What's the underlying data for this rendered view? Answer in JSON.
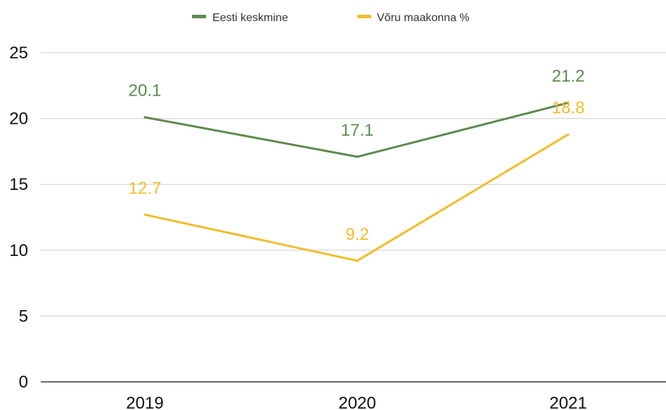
{
  "chart_data": {
    "type": "line",
    "title": "",
    "xlabel": "",
    "ylabel": "",
    "categories": [
      "2019",
      "2020",
      "2021"
    ],
    "ylim": [
      0,
      25
    ],
    "yticks": [
      "0",
      "5",
      "10",
      "15",
      "20",
      "25"
    ],
    "grid": true,
    "legend_position": "top-center",
    "series": [
      {
        "name": "Eesti keskmine",
        "color": "#5b8a4e",
        "values": [
          20.1,
          17.1,
          21.2
        ],
        "labels": [
          "20.1",
          "17.1",
          "21.2"
        ]
      },
      {
        "name": "Võru maakonna %",
        "color": "#f2bd29",
        "values": [
          12.7,
          9.2,
          18.8
        ],
        "labels": [
          "12.7",
          "9.2",
          "18.8"
        ]
      }
    ]
  }
}
